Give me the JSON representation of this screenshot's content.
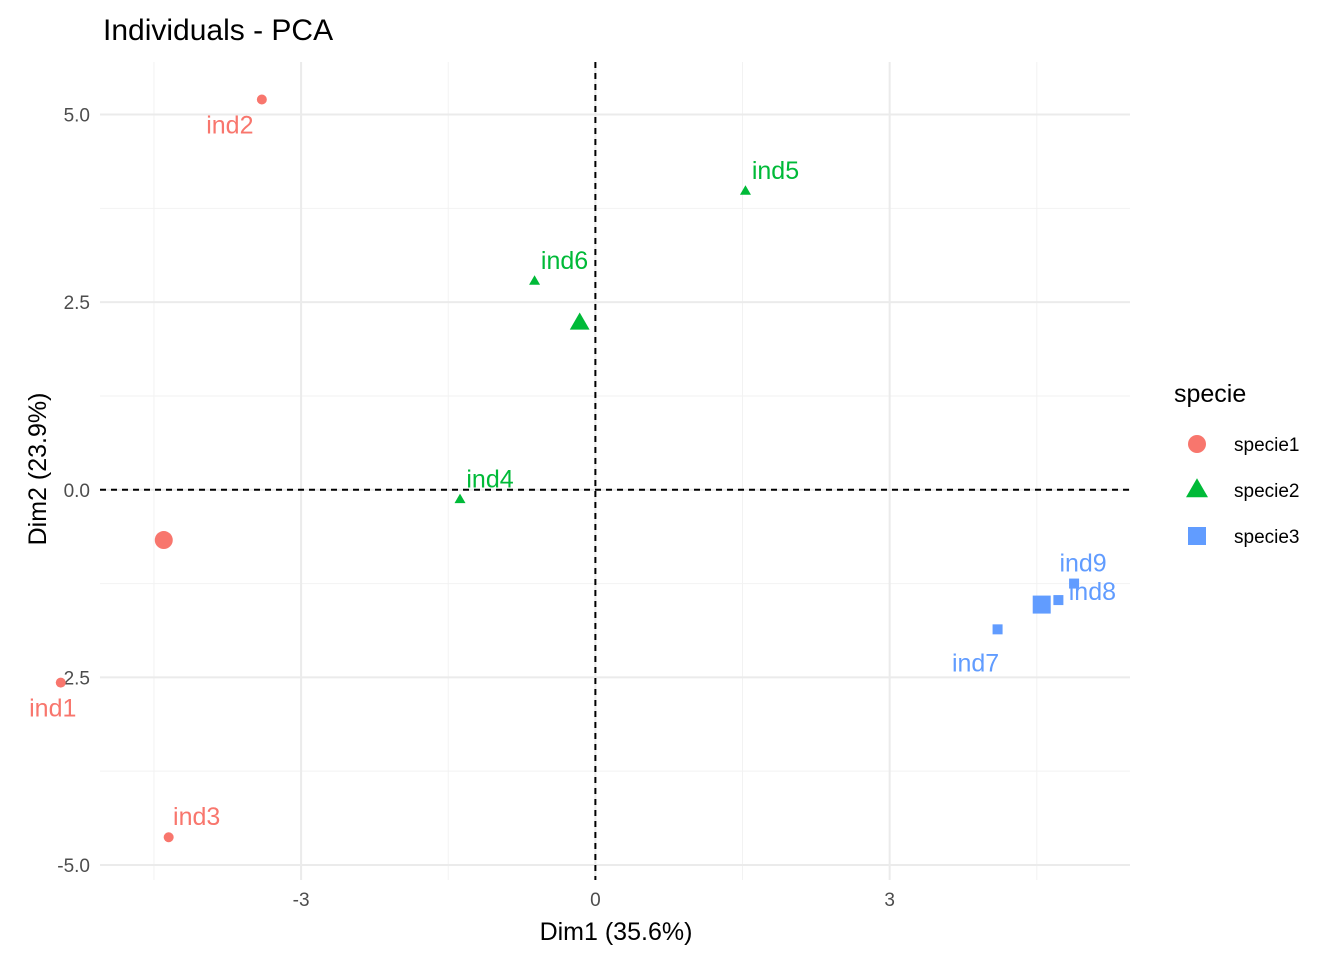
{
  "chart_data": {
    "type": "scatter",
    "title": "Individuals - PCA",
    "xlabel": "Dim1 (35.6%)",
    "ylabel": "Dim2 (23.9%)",
    "xlim": [
      -5.05,
      5.45
    ],
    "ylim": [
      -5.2,
      5.7
    ],
    "xticks": [
      -3,
      0,
      3
    ],
    "xtick_labels": [
      "-3",
      "0",
      "3"
    ],
    "yticks": [
      -5.0,
      -2.5,
      0.0,
      2.5,
      5.0
    ],
    "ytick_labels": [
      "-5.0",
      "-2.5",
      "0.0",
      "2.5",
      "5.0"
    ],
    "grid": true,
    "reference_lines": {
      "x": 0,
      "y": 0,
      "style": "dashed"
    },
    "legend": {
      "title": "specie",
      "position": "right"
    },
    "series": [
      {
        "name": "specie1",
        "color": "#F8766D",
        "shape": "circle",
        "points": [
          {
            "label": "ind1",
            "x": -5.45,
            "y": -2.57
          },
          {
            "label": "ind2",
            "x": -3.4,
            "y": 5.2
          },
          {
            "label": "ind3",
            "x": -4.35,
            "y": -4.63
          }
        ],
        "centroid": {
          "x": -4.4,
          "y": -0.67
        }
      },
      {
        "name": "specie2",
        "color": "#00BA38",
        "shape": "triangle",
        "points": [
          {
            "label": "ind4",
            "x": -1.38,
            "y": -0.13
          },
          {
            "label": "ind5",
            "x": 1.53,
            "y": 3.98
          },
          {
            "label": "ind6",
            "x": -0.62,
            "y": 2.78
          }
        ],
        "centroid": {
          "x": -0.16,
          "y": 2.22
        }
      },
      {
        "name": "specie3",
        "color": "#619CFF",
        "shape": "square",
        "points": [
          {
            "label": "ind7",
            "x": 4.1,
            "y": -1.86
          },
          {
            "label": "ind8",
            "x": 4.72,
            "y": -1.47
          },
          {
            "label": "ind9",
            "x": 4.88,
            "y": -1.25
          }
        ],
        "centroid": {
          "x": 4.55,
          "y": -1.53
        }
      }
    ]
  }
}
